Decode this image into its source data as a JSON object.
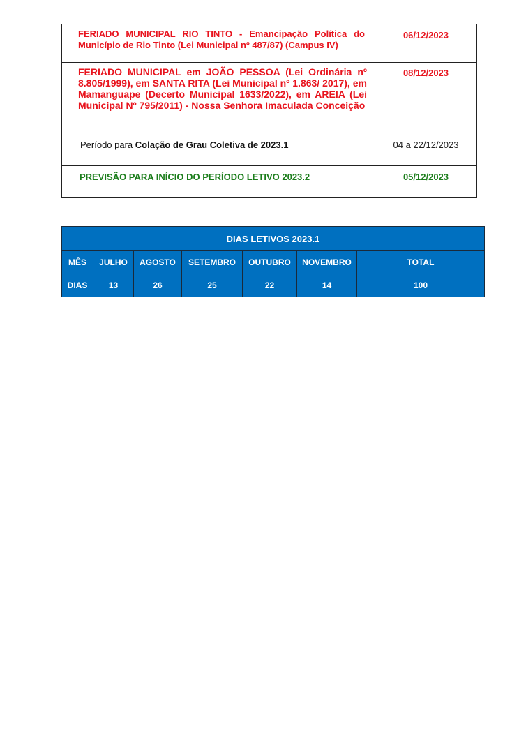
{
  "events": [
    {
      "text": "FERIADO MUNICIPAL RIO TINTO - Emancipação Política do Município de Rio Tinto (Lei Municipal nº 487/87) (Campus IV)",
      "date": "06/12/2023"
    },
    {
      "text": "FERIADO MUNICIPAL em JOÃO PESSOA (Lei Ordinária nº 8.805/1999), em SANTA RITA (Lei Municipal nº 1.863/ 2017), em Mamanguape (Decerto Municipal 1633/2022), em AREIA (Lei Municipal Nº 795/2011) - Nossa Senhora Imaculada Conceição",
      "date": "08/12/2023"
    },
    {
      "prefix": "Período para ",
      "text": "Colação de Grau Coletiva de 2023.1",
      "date": "04 a 22/12/2023"
    },
    {
      "text": "PREVISÃO PARA INÍCIO DO PERÍODO LETIVO 2023.2",
      "date": "05/12/2023"
    }
  ],
  "dias_letivos": {
    "title": "DIAS LETIVOS 2023.1",
    "headers": [
      "MÊS",
      "JULHO",
      "AGOSTO",
      "SETEMBRO",
      "OUTUBRO",
      "NOVEMBRO",
      "TOTAL"
    ],
    "values": [
      "DIAS",
      "13",
      "26",
      "25",
      "22",
      "14",
      "100"
    ]
  },
  "colors": {
    "red": "#e8141e",
    "green": "#1b7d1b",
    "blue": "#0070c0"
  }
}
